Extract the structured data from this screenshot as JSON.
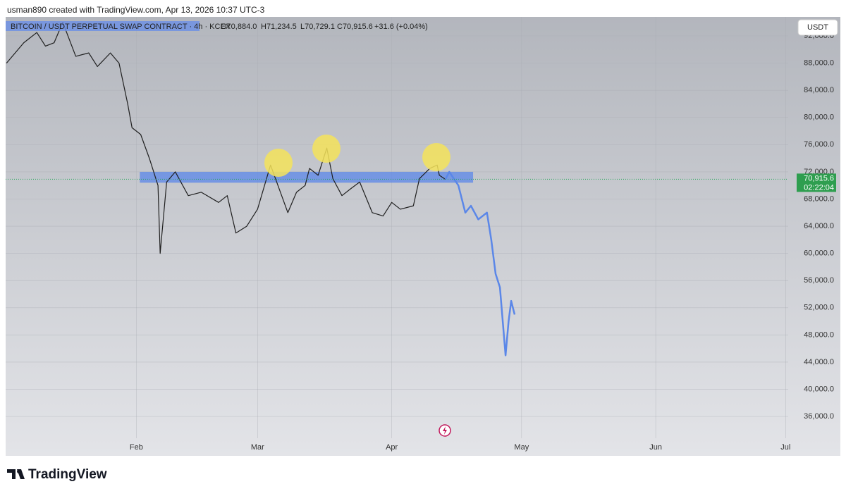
{
  "header": {
    "credit": "usman890 created with TradingView.com, Apr 13, 2026 10:37 UTC-3"
  },
  "legend": {
    "symbol": "BITCOIN / USDT PERPETUAL SWAP CONTRACT · 4h · KCEX",
    "open": "O70,884.0",
    "high": "H71,234.5",
    "low": "L70,729.1",
    "close": "C70,915.6",
    "change": "+31.6 (+0.04%)"
  },
  "currency": "USDT",
  "countdown": "02:22:04",
  "brand": "TradingView",
  "chart_data": {
    "type": "line",
    "xlim": [
      0.8,
      181.6
    ],
    "ylim": [
      32800,
      94800
    ],
    "xticks": [
      {
        "value": 31,
        "label": "Feb"
      },
      {
        "value": 59,
        "label": "Mar"
      },
      {
        "value": 90,
        "label": "Apr"
      },
      {
        "value": 120,
        "label": "May"
      },
      {
        "value": 151,
        "label": "Jun"
      },
      {
        "value": 181,
        "label": "Jul"
      }
    ],
    "yticks": [
      {
        "value": 92000,
        "label": "92,000.0"
      },
      {
        "value": 88000,
        "label": "88,000.0"
      },
      {
        "value": 84000,
        "label": "84,000.0"
      },
      {
        "value": 80000,
        "label": "80,000.0"
      },
      {
        "value": 76000,
        "label": "76,000.0"
      },
      {
        "value": 72000,
        "label": "72,000.0"
      },
      {
        "value": 68000,
        "label": "68,000.0"
      },
      {
        "value": 64000,
        "label": "64,000.0"
      },
      {
        "value": 60000,
        "label": "60,000.0"
      },
      {
        "value": 56000,
        "label": "56,000.0"
      },
      {
        "value": 52000,
        "label": "52,000.0"
      },
      {
        "value": 48000,
        "label": "48,000.0"
      },
      {
        "value": 44000,
        "label": "44,000.0"
      },
      {
        "value": 40000,
        "label": "40,000.0"
      },
      {
        "value": 36000,
        "label": "36,000.0"
      }
    ],
    "grid": true,
    "series": [
      {
        "color": "#1f1f1f",
        "x": [
          1,
          3,
          5,
          8,
          10,
          12,
          14,
          17,
          20,
          22,
          25,
          27,
          29,
          30,
          32,
          34,
          36,
          36.5,
          38,
          40,
          43,
          46,
          50,
          52,
          54,
          56.5,
          59,
          62,
          64,
          66,
          68,
          70,
          71,
          73,
          75,
          76.4,
          78.5,
          80.5,
          82.6,
          85.5,
          88,
          90,
          92,
          95,
          96.4,
          98.8,
          100.5,
          101,
          102.4
        ],
        "values": [
          88000,
          89500,
          91000,
          92500,
          90500,
          91000,
          94000,
          89000,
          89500,
          87500,
          89500,
          88000,
          82000,
          78500,
          77500,
          74000,
          70000,
          60000,
          70500,
          72000,
          68500,
          69000,
          67500,
          68500,
          63000,
          64000,
          66500,
          73000,
          69500,
          66000,
          69000,
          70000,
          72500,
          71500,
          75500,
          71000,
          68500,
          69500,
          70500,
          66000,
          65500,
          67500,
          66500,
          67000,
          71000,
          72500,
          73000,
          71500,
          70900
        ]
      },
      {
        "color": "#5b87e8",
        "x": [
          102.4,
          103.3,
          105.4,
          107,
          108.3,
          110,
          112,
          113,
          114,
          115,
          116.3,
          117,
          117.6,
          118.4
        ],
        "values": [
          70900,
          72000,
          70000,
          66000,
          67000,
          65000,
          66000,
          62000,
          57000,
          55000,
          45000,
          50000,
          53000,
          51000
        ]
      }
    ],
    "zone": {
      "top": 72000,
      "bottom": 70400,
      "x": [
        31.8,
        108.8
      ]
    },
    "last_price": {
      "value": 70915.6,
      "label": "70,915.6"
    }
  }
}
